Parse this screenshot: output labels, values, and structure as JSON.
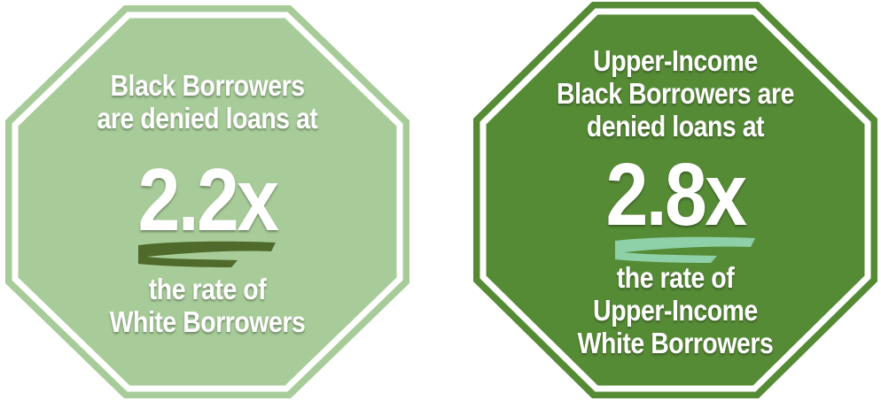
{
  "signs": [
    {
      "fill": "#a8cc99",
      "stripe": "#4f6a2a",
      "headline": [
        "Black Borrowers",
        "are denied loans at"
      ],
      "multiplier": "2.2x",
      "footer": [
        "the rate of",
        "White Borrowers"
      ]
    },
    {
      "fill": "#568b36",
      "stripe": "#8ed0a8",
      "headline": [
        "Upper-Income",
        "Black Borrowers are",
        "denied loans at"
      ],
      "multiplier": "2.8x",
      "footer": [
        "the rate of",
        "Upper-Income",
        "White Borrowers"
      ]
    }
  ]
}
